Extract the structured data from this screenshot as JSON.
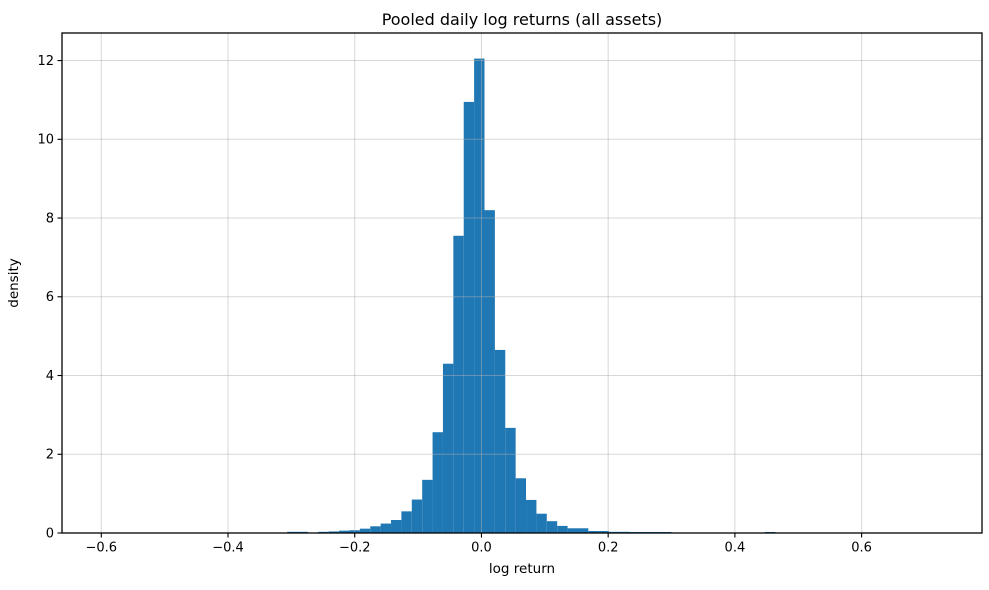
{
  "chart_data": {
    "type": "bar",
    "subtype": "histogram",
    "title": "Pooled daily log returns (all assets)",
    "xlabel": "log return",
    "ylabel": "density",
    "legend": null,
    "grid": true,
    "bar_color": "#1f77b4",
    "grid_color_rgba": "rgba(176,176,176,0.5)",
    "spine_color": "#000000",
    "background_color": "#ffffff",
    "xlim": [
      -0.662,
      0.79
    ],
    "ylim": [
      0,
      12.7
    ],
    "x_ticks": [
      -0.6,
      -0.4,
      -0.2,
      0.0,
      0.2,
      0.4,
      0.6
    ],
    "x_tick_labels": [
      "−0.6",
      "−0.4",
      "−0.2",
      "0.0",
      "0.2",
      "0.4",
      "0.6"
    ],
    "y_ticks": [
      0,
      2,
      4,
      6,
      8,
      10,
      12
    ],
    "y_tick_labels": [
      "0",
      "2",
      "4",
      "6",
      "8",
      "10",
      "12"
    ],
    "bin_start": -0.3066,
    "bin_width": 0.01639,
    "densities": [
      0.03,
      0.03,
      0.0,
      0.03,
      0.04,
      0.06,
      0.07,
      0.11,
      0.17,
      0.24,
      0.33,
      0.55,
      0.85,
      1.35,
      2.56,
      4.3,
      7.55,
      10.95,
      12.05,
      8.2,
      4.65,
      2.67,
      1.39,
      0.84,
      0.49,
      0.3,
      0.18,
      0.12,
      0.12,
      0.05,
      0.05,
      0.03,
      0.03,
      0.02,
      0.02,
      0.02,
      0.02,
      0.0,
      0.0,
      0.0,
      0.0,
      0.0,
      0.0,
      0.0,
      0.0,
      0.0,
      0.02
    ]
  }
}
